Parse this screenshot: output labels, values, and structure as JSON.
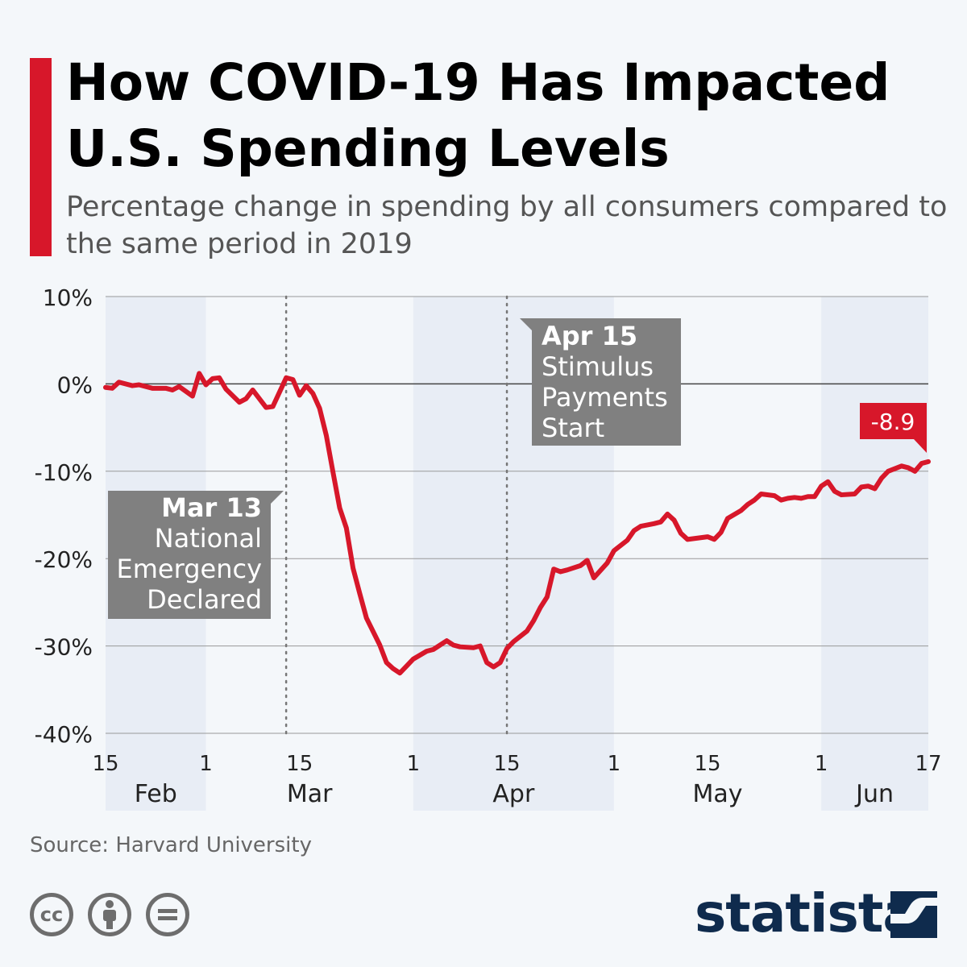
{
  "header": {
    "title": "How COVID-19 Has Impacted U.S. Spending Levels",
    "subtitle": "Percentage change in spending by all consumers compared to the same period in 2019"
  },
  "chart_data": {
    "type": "line",
    "title": "How COVID-19 Has Impacted U.S. Spending Levels",
    "ylabel": "",
    "xlabel": "",
    "ylim": [
      -40,
      10
    ],
    "yticks": [
      "10%",
      "0%",
      "-10%",
      "-20%",
      "-30%",
      "-40%"
    ],
    "ytick_values": [
      10,
      0,
      -10,
      -20,
      -30,
      -40
    ],
    "xlim": [
      "2020-02-15",
      "2020-06-17"
    ],
    "xticks": [
      {
        "date": "2020-02-15",
        "label": "15"
      },
      {
        "date": "2020-03-01",
        "label": "1"
      },
      {
        "date": "2020-03-15",
        "label": "15"
      },
      {
        "date": "2020-04-01",
        "label": "1"
      },
      {
        "date": "2020-04-15",
        "label": "15"
      },
      {
        "date": "2020-05-01",
        "label": "1"
      },
      {
        "date": "2020-05-15",
        "label": "15"
      },
      {
        "date": "2020-06-01",
        "label": "1"
      },
      {
        "date": "2020-06-17",
        "label": "17"
      }
    ],
    "months": [
      {
        "label": "Feb",
        "start": "2020-02-15",
        "end": "2020-03-01",
        "shaded": true
      },
      {
        "label": "Mar",
        "start": "2020-03-01",
        "end": "2020-04-01",
        "shaded": false
      },
      {
        "label": "Apr",
        "start": "2020-04-01",
        "end": "2020-05-01",
        "shaded": true
      },
      {
        "label": "May",
        "start": "2020-05-01",
        "end": "2020-06-01",
        "shaded": false
      },
      {
        "label": "Jun",
        "start": "2020-06-01",
        "end": "2020-06-17",
        "shaded": true
      }
    ],
    "grid": true,
    "series_color": "#d7172a",
    "x": [
      "2020-02-15",
      "2020-02-16",
      "2020-02-17",
      "2020-02-19",
      "2020-02-20",
      "2020-02-22",
      "2020-02-24",
      "2020-02-25",
      "2020-02-26",
      "2020-02-28",
      "2020-02-29",
      "2020-03-01",
      "2020-03-02",
      "2020-03-03",
      "2020-03-04",
      "2020-03-06",
      "2020-03-07",
      "2020-03-08",
      "2020-03-10",
      "2020-03-11",
      "2020-03-13",
      "2020-03-14",
      "2020-03-15",
      "2020-03-16",
      "2020-03-17",
      "2020-03-18",
      "2020-03-19",
      "2020-03-20",
      "2020-03-21",
      "2020-03-22",
      "2020-03-23",
      "2020-03-24",
      "2020-03-25",
      "2020-03-27",
      "2020-03-28",
      "2020-03-29",
      "2020-03-30",
      "2020-03-31",
      "2020-04-01",
      "2020-04-03",
      "2020-04-04",
      "2020-04-06",
      "2020-04-07",
      "2020-04-08",
      "2020-04-10",
      "2020-04-11",
      "2020-04-12",
      "2020-04-13",
      "2020-04-14",
      "2020-04-15",
      "2020-04-16",
      "2020-04-18",
      "2020-04-19",
      "2020-04-20",
      "2020-04-21",
      "2020-04-22",
      "2020-04-23",
      "2020-04-24",
      "2020-04-26",
      "2020-04-27",
      "2020-04-28",
      "2020-04-30",
      "2020-05-01",
      "2020-05-03",
      "2020-05-04",
      "2020-05-05",
      "2020-05-07",
      "2020-05-08",
      "2020-05-09",
      "2020-05-10",
      "2020-05-11",
      "2020-05-12",
      "2020-05-15",
      "2020-05-16",
      "2020-05-17",
      "2020-05-18",
      "2020-05-20",
      "2020-05-21",
      "2020-05-22",
      "2020-05-23",
      "2020-05-25",
      "2020-05-26",
      "2020-05-27",
      "2020-05-28",
      "2020-05-29",
      "2020-05-30",
      "2020-05-31",
      "2020-06-01",
      "2020-06-02",
      "2020-06-03",
      "2020-06-04",
      "2020-06-06",
      "2020-06-07",
      "2020-06-08",
      "2020-06-09",
      "2020-06-10",
      "2020-06-11",
      "2020-06-13",
      "2020-06-14",
      "2020-06-15",
      "2020-06-16",
      "2020-06-17"
    ],
    "values": [
      -0.4,
      -0.5,
      0.2,
      -0.2,
      -0.1,
      -0.5,
      -0.5,
      -0.7,
      -0.3,
      -1.4,
      1.2,
      -0.1,
      0.6,
      0.7,
      -0.6,
      -2.1,
      -1.7,
      -0.7,
      -2.7,
      -2.6,
      0.7,
      0.5,
      -1.3,
      -0.2,
      -1.1,
      -2.8,
      -5.9,
      -10.1,
      -14.2,
      -16.5,
      -21.1,
      -24.0,
      -26.8,
      -29.9,
      -31.9,
      -32.6,
      -33.1,
      -32.3,
      -31.5,
      -30.6,
      -30.4,
      -29.4,
      -29.9,
      -30.1,
      -30.2,
      -30.0,
      -31.9,
      -32.4,
      -31.9,
      -30.3,
      -29.5,
      -28.3,
      -27.1,
      -25.6,
      -24.4,
      -21.2,
      -21.5,
      -21.3,
      -20.8,
      -20.2,
      -22.2,
      -20.5,
      -19.1,
      -17.9,
      -16.8,
      -16.3,
      -16.0,
      -15.8,
      -14.9,
      -15.6,
      -17.1,
      -17.8,
      -17.5,
      -17.8,
      -17.0,
      -15.4,
      -14.5,
      -13.8,
      -13.3,
      -12.6,
      -12.8,
      -13.3,
      -13.1,
      -13.0,
      -13.1,
      -12.9,
      -12.9,
      -11.7,
      -11.2,
      -12.3,
      -12.7,
      -12.6,
      -11.8,
      -11.7,
      -12.0,
      -10.8,
      -10.0,
      -9.4,
      -9.6,
      -10.0,
      -9.1,
      -8.9
    ],
    "annotations": [
      {
        "date": "2020-03-13",
        "heading": "Mar 13",
        "lines": [
          "National",
          "Emergency",
          "Declared"
        ]
      },
      {
        "date": "2020-04-15",
        "heading": "Apr 15",
        "lines": [
          "Stimulus",
          "Payments",
          "Start"
        ]
      }
    ],
    "last_value_label": "-8.9"
  },
  "footer": {
    "source": "Source: Harvard University",
    "license_icons": [
      "cc-icon",
      "attribution-icon",
      "no-derivatives-icon"
    ],
    "logo": "statista"
  }
}
